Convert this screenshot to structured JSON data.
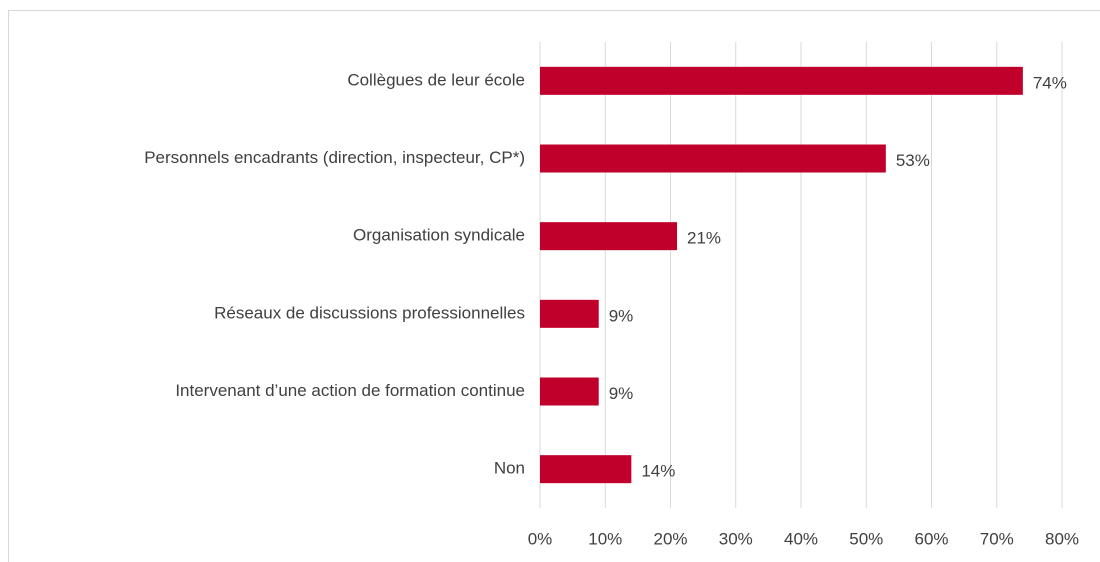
{
  "chart_data": {
    "type": "bar",
    "orientation": "horizontal",
    "categories": [
      "Collègues de leur école",
      "Personnels encadrants (direction, inspecteur, CP*)",
      "Organisation syndicale",
      "Réseaux de discussions professionnelles",
      "Intervenant d’une action de formation continue",
      "Non"
    ],
    "values": [
      74,
      53,
      21,
      9,
      9,
      14
    ],
    "value_labels": [
      "74%",
      "53%",
      "21%",
      "9%",
      "9%",
      "14%"
    ],
    "color": "#c0002a",
    "xlim": [
      0,
      80
    ],
    "xticks": [
      {
        "value": 0,
        "label": "0%"
      },
      {
        "value": 10,
        "label": "10%"
      },
      {
        "value": 20,
        "label": "20%"
      },
      {
        "value": 30,
        "label": "30%"
      },
      {
        "value": 40,
        "label": "40%"
      },
      {
        "value": 50,
        "label": "50%"
      },
      {
        "value": 60,
        "label": "60%"
      },
      {
        "value": 70,
        "label": "70%"
      },
      {
        "value": 80,
        "label": "80%"
      }
    ],
    "grid": true
  }
}
